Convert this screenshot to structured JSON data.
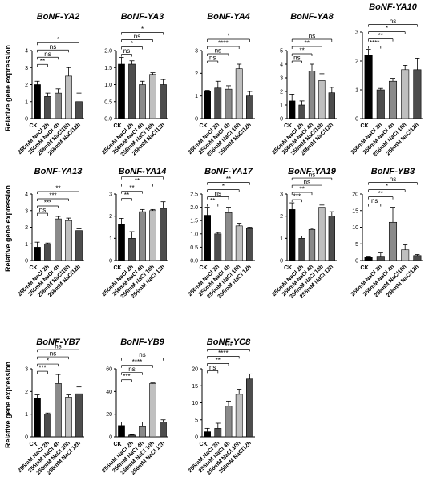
{
  "ylabel": "Relative gene expression",
  "colors": [
    "#000000",
    "#4d4d4d",
    "#8a8a8a",
    "#bfbfbf",
    "#4d4d4d"
  ],
  "chart_data": [
    {
      "type": "bar",
      "title": "BoNF-YA2",
      "ylim": [
        0,
        4
      ],
      "yticks": [
        0,
        1,
        2,
        3,
        4
      ],
      "categories": [
        "CK",
        "256mM NaCl 2h",
        "256mM NaCl 4h",
        "256mM NaCl10h",
        "256mM NaCl12h"
      ],
      "values": [
        2.0,
        1.3,
        1.5,
        2.5,
        1.0
      ],
      "errors": [
        0.2,
        0.2,
        0.25,
        0.5,
        0.5
      ],
      "significance": [
        "**",
        "ns",
        "ns",
        "*"
      ]
    },
    {
      "type": "bar",
      "title": "BoNF-YA3",
      "ylim": [
        0,
        2
      ],
      "yticks": [
        0.0,
        0.5,
        1.0,
        1.5,
        2.0
      ],
      "categories": [
        "CK",
        "256mM NaCl 2h",
        "256mM NaCl 4h",
        "256mM NaCl 10h",
        "256mM NaCl12h"
      ],
      "values": [
        1.6,
        1.6,
        1.0,
        1.3,
        1.0
      ],
      "errors": [
        0.2,
        0.1,
        0.1,
        0.05,
        0.15
      ],
      "significance": [
        "ns",
        "*",
        "ns",
        "*"
      ]
    },
    {
      "type": "bar",
      "title": "BoNF-YA4",
      "ylim": [
        0,
        3
      ],
      "yticks": [
        0,
        1,
        2,
        3
      ],
      "categories": [
        "CK",
        "256mM NaCl 2h",
        "256mM NaCl 4h",
        "256mM NaCl 10h",
        "256mM NaCl12h"
      ],
      "values": [
        1.2,
        1.35,
        1.3,
        2.2,
        1.0
      ],
      "errors": [
        0.05,
        0.3,
        0.15,
        0.2,
        0.2
      ],
      "significance": [
        "ns",
        "ns",
        "****",
        "*"
      ]
    },
    {
      "type": "bar",
      "title": "BoNF-YA8",
      "ylim": [
        0,
        5
      ],
      "yticks": [
        0,
        1,
        2,
        3,
        4,
        5
      ],
      "categories": [
        "CK",
        "256mM NaCl 2h",
        "256mM NaCl 4h",
        "256mM NaCl10h",
        "256mM NaCl12h"
      ],
      "values": [
        1.3,
        1.0,
        3.5,
        2.8,
        1.9
      ],
      "errors": [
        0.5,
        0.3,
        0.5,
        0.5,
        0.4
      ],
      "significance": [
        "ns",
        "**",
        "**",
        "ns"
      ]
    },
    {
      "type": "bar",
      "title": "BoNF-YA10",
      "ylim": [
        0,
        3
      ],
      "yticks": [
        0,
        1,
        2,
        3
      ],
      "categories": [
        "CK",
        "256mM NaCl 2h",
        "256mM NaCl 4h",
        "256mM NaCl 10h",
        "256mM NaCl12h"
      ],
      "values": [
        2.2,
        1.0,
        1.3,
        1.7,
        1.7
      ],
      "errors": [
        0.2,
        0.05,
        0.1,
        0.15,
        0.4
      ],
      "significance": [
        "****",
        "**",
        "*",
        "ns"
      ]
    },
    {
      "type": "bar",
      "title": "BoNF-YA13",
      "ylim": [
        0,
        4
      ],
      "yticks": [
        0,
        1,
        2,
        3,
        4
      ],
      "categories": [
        "CK",
        "256mM NaCl 2h",
        "256mM NaCl 4h",
        "256mM NaCl10h",
        "256mM NaCl12h"
      ],
      "values": [
        0.8,
        1.0,
        2.5,
        2.4,
        1.8
      ],
      "errors": [
        0.3,
        0.05,
        0.15,
        0.15,
        0.1
      ],
      "significance": [
        "ns",
        "***",
        "***",
        "**"
      ]
    },
    {
      "type": "bar",
      "title": "BoNF-YA14",
      "ylim": [
        0,
        3
      ],
      "yticks": [
        0,
        1,
        2,
        3
      ],
      "categories": [
        "CK",
        "256mM NaCl 2h",
        "256mM NaCl 4h",
        "256mM NaCl 10h",
        "256mM NaCl 12h"
      ],
      "values": [
        1.65,
        1.0,
        2.2,
        2.25,
        2.35
      ],
      "errors": [
        0.25,
        0.3,
        0.1,
        0.05,
        0.3
      ],
      "significance": [
        "**",
        "**",
        "**",
        "**"
      ]
    },
    {
      "type": "bar",
      "title": "BoNF-YA17",
      "ylim": [
        0,
        2.5
      ],
      "yticks": [
        0.0,
        0.5,
        1.0,
        1.5,
        2.0,
        2.5
      ],
      "categories": [
        "CK",
        "256mM NaCl 2h",
        "256mM NaCl 4h",
        "256mM NaCl 10h",
        "256mM NaCl 12h"
      ],
      "values": [
        1.7,
        1.0,
        1.8,
        1.3,
        1.2
      ],
      "errors": [
        0.3,
        0.05,
        0.2,
        0.1,
        0.05
      ],
      "significance": [
        "**",
        "ns",
        "*",
        "**"
      ]
    },
    {
      "type": "bar",
      "title": "BoNF-YA19",
      "ylim": [
        0,
        3
      ],
      "yticks": [
        0,
        1,
        2,
        3
      ],
      "categories": [
        "CK",
        "256mM NaCl 2h",
        "256mM NaCl 4h",
        "256mM NaCl 10h",
        "256mM NaCl 12h"
      ],
      "values": [
        2.3,
        1.0,
        1.4,
        2.4,
        2.0
      ],
      "errors": [
        0.3,
        0.1,
        0.05,
        0.1,
        0.2
      ],
      "significance": [
        "***",
        "**",
        "ns",
        "ns"
      ]
    },
    {
      "type": "bar",
      "title": "BoNF-YB3",
      "ylim": [
        0,
        20
      ],
      "yticks": [
        0,
        5,
        10,
        15,
        20
      ],
      "categories": [
        "CK",
        "256mM NaCl 2h",
        "256mM NaCl 4h",
        "256mM NaCl10h",
        "256mM NaCl12h"
      ],
      "values": [
        1.0,
        1.3,
        11.5,
        3.2,
        1.5
      ],
      "errors": [
        0.3,
        1.2,
        4.5,
        1.5,
        0.3
      ],
      "significance": [
        "ns",
        "**",
        "*",
        "ns"
      ]
    },
    {
      "type": "bar",
      "title": "BoNF-YB7",
      "ylim": [
        0,
        3
      ],
      "yticks": [
        0,
        1,
        2,
        3
      ],
      "categories": [
        "CK",
        "256mM NaCl 2h",
        "256mM NaCl 4h",
        "256mM NaCl 10h",
        "256mM NaCl 12h"
      ],
      "values": [
        1.7,
        1.0,
        2.35,
        1.75,
        1.9
      ],
      "errors": [
        0.15,
        0.05,
        0.4,
        0.1,
        0.3
      ],
      "significance": [
        "***",
        "*",
        "ns",
        "ns"
      ]
    },
    {
      "type": "bar",
      "title": "BoNF-YB9",
      "ylim": [
        0,
        60
      ],
      "yticks": [
        0,
        20,
        40,
        60
      ],
      "categories": [
        "CK",
        "256mM NaCl 2h",
        "256mM NaCl 4h",
        "256mM NaCl 10h",
        "256mM NaCl 12h"
      ],
      "values": [
        10,
        1.5,
        9,
        47,
        13
      ],
      "errors": [
        3,
        0.5,
        4,
        0.5,
        2
      ],
      "significance": [
        "***",
        "ns",
        "****",
        "ns"
      ]
    },
    {
      "type": "bar",
      "title": "BoNF-YC8",
      "ylim": [
        0,
        20
      ],
      "yticks": [
        0,
        5,
        10,
        15,
        20
      ],
      "categories": [
        "CK",
        "256mM NaCl 2h",
        "256mM NaCl 4h",
        "256mM NaCl 10h",
        "256mM NaCl12h"
      ],
      "values": [
        1.5,
        2.5,
        9,
        12.5,
        17
      ],
      "errors": [
        1,
        1.5,
        1.5,
        1.5,
        1.5
      ],
      "significance": [
        "ns",
        "**",
        "****",
        "***"
      ]
    }
  ]
}
